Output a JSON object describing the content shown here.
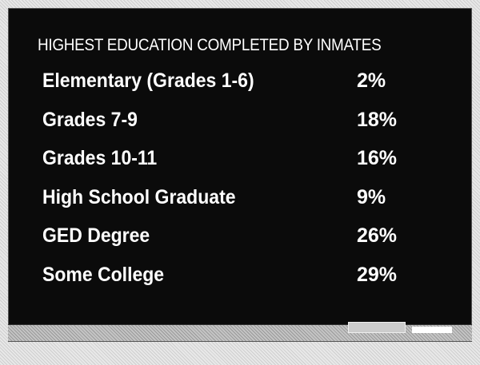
{
  "title": "HIGHEST EDUCATION COMPLETED BY INMATES",
  "table": {
    "rows": [
      [
        "Elementary (Grades 1-6)",
        "2%"
      ],
      [
        "Grades 7-9",
        "18%"
      ],
      [
        "Grades 10-11",
        "16%"
      ],
      [
        "High School Graduate",
        "9%"
      ],
      [
        "GED Degree",
        "26%"
      ],
      [
        "Some College",
        "29%"
      ]
    ]
  }
}
